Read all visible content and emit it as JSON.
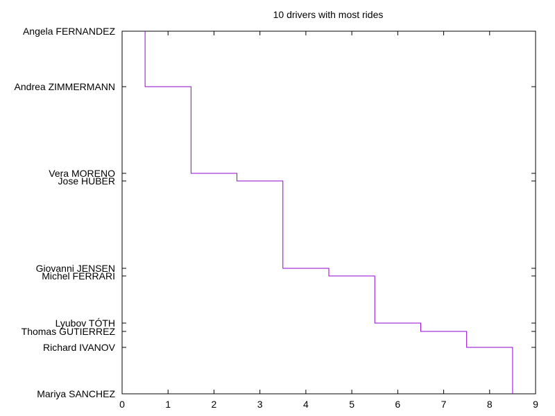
{
  "chart_data": {
    "type": "line",
    "title": "10 drivers with most rides",
    "xlabel": "",
    "ylabel": "",
    "xlim": [
      0,
      9
    ],
    "x_ticks": [
      0,
      1,
      2,
      3,
      4,
      5,
      6,
      7,
      8,
      9
    ],
    "grid": false,
    "line_style": "step",
    "series": [
      {
        "color": "#9400d3",
        "points": [
          {
            "x": 0.5,
            "y": "Angela FERNANDEZ"
          },
          {
            "x": 1.5,
            "y": "Andrea ZIMMERMANN"
          },
          {
            "x": 2.5,
            "y": "Vera MORENO"
          },
          {
            "x": 3.5,
            "y": "Jose HUBER"
          },
          {
            "x": 4.5,
            "y": "Giovanni JENSEN"
          },
          {
            "x": 5.5,
            "y": "Michel FERRARI"
          },
          {
            "x": 6.5,
            "y": "Lyubov TÓTH"
          },
          {
            "x": 7.5,
            "y": "Thomas GUTIERREZ"
          },
          {
            "x": 8.5,
            "y": "Richard IVANOV"
          },
          {
            "x": 8.5,
            "y": "Mariya SANCHEZ"
          }
        ]
      }
    ],
    "y_categories": [
      "Angela FERNANDEZ",
      "Andrea ZIMMERMANN",
      "Vera MORENO",
      "Jose HUBER",
      "Giovanni JENSEN",
      "Michel FERRARI",
      "Lyubov TÓTH",
      "Thomas GUTIERREZ",
      "Richard IVANOV",
      "Mariya SANCHEZ"
    ]
  }
}
